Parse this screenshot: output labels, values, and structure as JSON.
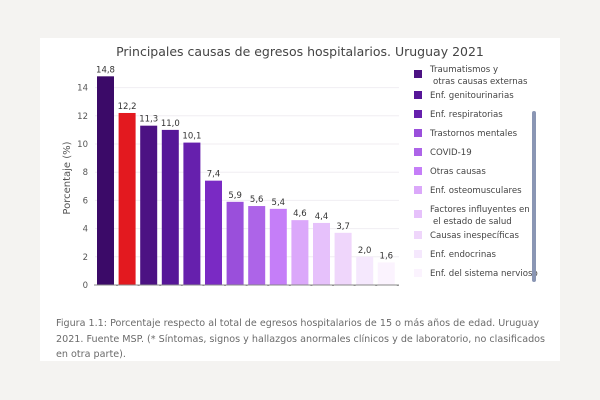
{
  "chart_data": {
    "type": "bar",
    "title": "Principales causas de egresos hospitalarios. Uruguay 2021",
    "xlabel": "",
    "ylabel": "Porcentaje (%)",
    "ylim": [
      0,
      15
    ],
    "yticks": [
      "0",
      "2",
      "4",
      "6",
      "8",
      "10",
      "12",
      "14"
    ],
    "ytick_values": [
      0,
      2,
      4,
      6,
      8,
      10,
      12,
      14
    ],
    "grid": true,
    "values": [
      14.8,
      12.2,
      11.3,
      11.0,
      10.1,
      7.4,
      5.9,
      5.6,
      5.4,
      4.6,
      4.4,
      3.7,
      2.0,
      1.6
    ],
    "value_labels": [
      "14,8",
      "12,2",
      "11,3",
      "11,0",
      "10,1",
      "7,4",
      "5,9",
      "5,6",
      "5,4",
      "4,6",
      "4,4",
      "3,7",
      "2,0",
      "1,6"
    ],
    "colors": [
      "#3b0a68",
      "#e3191f",
      "#4c1283",
      "#561698",
      "#6620ad",
      "#7a2ac4",
      "#9a4fdb",
      "#ad64e8",
      "#c57ef8",
      "#dba8fa",
      "#e6c1fb",
      "#efd6fb",
      "#f5e8fd",
      "#fbf3fe"
    ],
    "legend_position": "right",
    "legend": [
      {
        "label": [
          "Traumatismos y",
          "otras causas externas"
        ],
        "color": "#4c1283"
      },
      {
        "label": [
          "Enf. genitourinarias"
        ],
        "color": "#561698"
      },
      {
        "label": [
          "Enf. respiratorias"
        ],
        "color": "#6620ad"
      },
      {
        "label": [
          "Trastornos mentales"
        ],
        "color": "#9a4fdb"
      },
      {
        "label": [
          "COVID-19"
        ],
        "color": "#ad64e8"
      },
      {
        "label": [
          "Otras causas"
        ],
        "color": "#c57ef8"
      },
      {
        "label": [
          "Enf. osteomusculares"
        ],
        "color": "#dba8fa"
      },
      {
        "label": [
          "Factores influyentes en",
          "el estado de salud"
        ],
        "color": "#e6c1fb"
      },
      {
        "label": [
          "Causas inespecíficas"
        ],
        "color": "#efd6fb"
      },
      {
        "label": [
          "Enf. endocrinas"
        ],
        "color": "#f5e8fd"
      },
      {
        "label": [
          "Enf. del sistema nervioso"
        ],
        "color": "#fbf3fe"
      }
    ]
  },
  "caption": "Figura 1.1: Porcentaje respecto al total de egresos hospitalarios de 15 o más años de edad. Uruguay 2021. Fuente MSP. (* Síntomas, signos y hallazgos anormales clínicos y de laboratorio, no clasificados en otra parte)."
}
